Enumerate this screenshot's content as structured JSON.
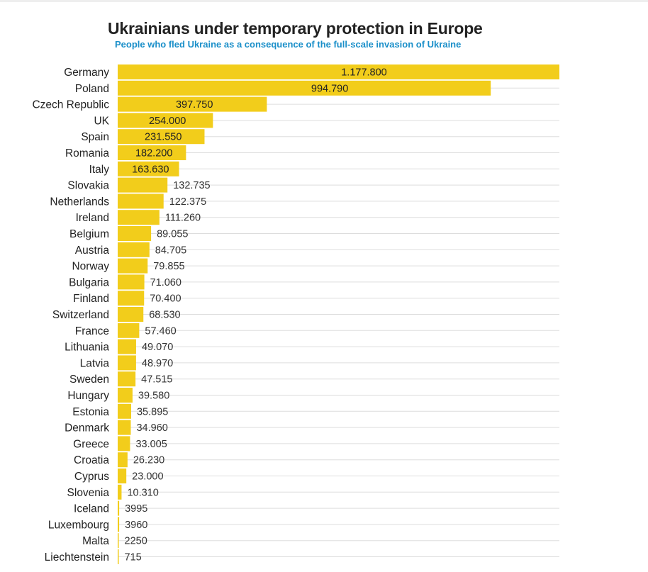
{
  "header": {
    "title": "Ukrainians under temporary protection in Europe",
    "subtitle": "People who fled Ukraine as a consequence of the full-scale invasion of Ukraine"
  },
  "colors": {
    "bar": "#f2cd1b",
    "grid": "#dddddd",
    "title": "#222222",
    "subtitle": "#1a8fc9"
  },
  "chart_data": {
    "type": "bar",
    "orientation": "horizontal",
    "title": "Ukrainians under temporary protection in Europe",
    "subtitle": "People who fled Ukraine as a consequence of the full-scale invasion of Ukraine",
    "categories": [
      "Germany",
      "Poland",
      "Czech Republic",
      "UK",
      "Spain",
      "Romania",
      "Italy",
      "Slovakia",
      "Netherlands",
      "Ireland",
      "Belgium",
      "Austria",
      "Norway",
      "Bulgaria",
      "Finland",
      "Switzerland",
      "France",
      "Lithuania",
      "Latvia",
      "Sweden",
      "Hungary",
      "Estonia",
      "Denmark",
      "Greece",
      "Croatia",
      "Cyprus",
      "Slovenia",
      "Iceland",
      "Luxembourg",
      "Malta",
      "Liechtenstein"
    ],
    "values": [
      1177800,
      994790,
      397750,
      254000,
      231550,
      182200,
      163630,
      132735,
      122375,
      111260,
      89055,
      84705,
      79855,
      71060,
      70400,
      68530,
      57460,
      49070,
      48970,
      47515,
      39580,
      35895,
      34960,
      33005,
      26230,
      23000,
      10310,
      3995,
      3960,
      2250,
      715
    ],
    "labels": [
      "1.177.800",
      "994.790",
      "397.750",
      "254.000",
      "231.550",
      "182.200",
      "163.630",
      "132.735",
      "122.375",
      "111.260",
      "89.055",
      "84.705",
      "79.855",
      "71.060",
      "70.400",
      "68.530",
      "57.460",
      "49.070",
      "48.970",
      "47.515",
      "39.580",
      "35.895",
      "34.960",
      "33.005",
      "26.230",
      "23.000",
      "10.310",
      "3995",
      "3960",
      "2250",
      "715"
    ],
    "xlim": [
      0,
      1177800
    ],
    "grid": true,
    "legend": "none"
  }
}
